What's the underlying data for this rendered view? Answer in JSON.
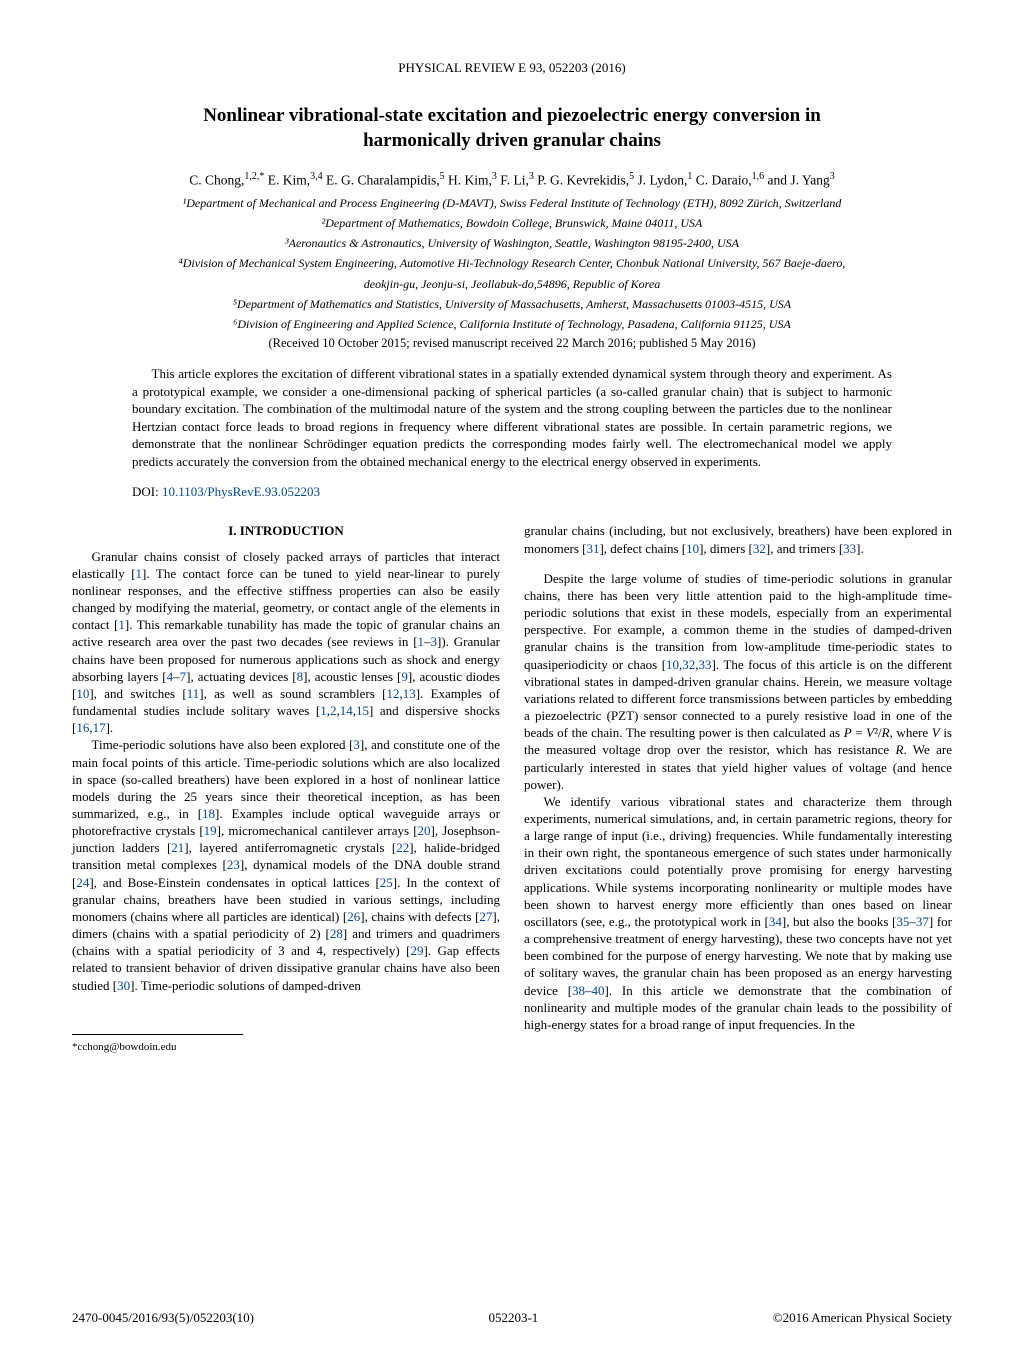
{
  "journal_header": "PHYSICAL REVIEW E 93, 052203 (2016)",
  "title_line1": "Nonlinear vibrational-state excitation and piezoelectric energy conversion in",
  "title_line2": "harmonically driven granular chains",
  "authors_html": "C. Chong,<span class='sup'>1,2,*</span> E. Kim,<span class='sup'>3,4</span> E. G. Charalampidis,<span class='sup'>5</span> H. Kim,<span class='sup'>3</span> F. Li,<span class='sup'>3</span> P. G. Kevrekidis,<span class='sup'>5</span> J. Lydon,<span class='sup'>1</span> C. Daraio,<span class='sup'>1,6</span> and J. Yang<span class='sup'>3</span>",
  "aff1": "¹Department of Mechanical and Process Engineering (D-MAVT), Swiss Federal Institute of Technology (ETH), 8092 Zürich, Switzerland",
  "aff2": "²Department of Mathematics, Bowdoin College, Brunswick, Maine 04011, USA",
  "aff3": "³Aeronautics & Astronautics, University of Washington, Seattle, Washington 98195-2400, USA",
  "aff4": "⁴Division of Mechanical System Engineering, Automotive Hi-Technology Research Center, Chonbuk National University, 567 Baeje-daero,",
  "aff4b": "deokjin-gu, Jeonju-si, Jeollabuk-do,54896, Republic of Korea",
  "aff5": "⁵Department of Mathematics and Statistics, University of Massachusetts, Amherst, Massachusetts 01003-4515, USA",
  "aff6": "⁶Division of Engineering and Applied Science, California Institute of Technology, Pasadena, California 91125, USA",
  "received": "(Received 10 October 2015; revised manuscript received 22 March 2016; published 5 May 2016)",
  "abstract": "This article explores the excitation of different vibrational states in a spatially extended dynamical system through theory and experiment. As a prototypical example, we consider a one-dimensional packing of spherical particles (a so-called granular chain) that is subject to harmonic boundary excitation. The combination of the multimodal nature of the system and the strong coupling between the particles due to the nonlinear Hertzian contact force leads to broad regions in frequency where different vibrational states are possible. In certain parametric regions, we demonstrate that the nonlinear Schrödinger equation predicts the corresponding modes fairly well. The electromechanical model we apply predicts accurately the conversion from the obtained mechanical energy to the electrical energy observed in experiments.",
  "doi_label": "DOI:",
  "doi_link": "10.1103/PhysRevE.93.052203",
  "section1": "I.  INTRODUCTION",
  "col1_p1": "Granular chains consist of closely packed arrays of particles that interact elastically [<span class='cite'>1</span>]. The contact force can be tuned to yield near-linear to purely nonlinear responses, and the effective stiffness properties can also be easily changed by modifying the material, geometry, or contact angle of the elements in contact [<span class='cite'>1</span>]. This remarkable tunability has made the topic of granular chains an active research area over the past two decades (see reviews in [<span class='cite'>1</span>–<span class='cite'>3</span>]). Granular chains have been proposed for numerous applications such as shock and energy absorbing layers [<span class='cite'>4</span>–<span class='cite'>7</span>], actuating devices [<span class='cite'>8</span>], acoustic lenses [<span class='cite'>9</span>], acoustic diodes [<span class='cite'>10</span>], and switches [<span class='cite'>11</span>], as well as sound scramblers [<span class='cite'>12</span>,<span class='cite'>13</span>]. Examples of fundamental studies include solitary waves [<span class='cite'>1</span>,<span class='cite'>2</span>,<span class='cite'>14</span>,<span class='cite'>15</span>] and dispersive shocks [<span class='cite'>16</span>,<span class='cite'>17</span>].",
  "col1_p2": "Time-periodic solutions have also been explored [<span class='cite'>3</span>], and constitute one of the main focal points of this article. Time-periodic solutions which are also localized in space (so-called breathers) have been explored in a host of nonlinear lattice models during the 25 years since their theoretical inception, as has been summarized, e.g., in [<span class='cite'>18</span>]. Examples include optical waveguide arrays or photorefractive crystals [<span class='cite'>19</span>], micromechanical cantilever arrays [<span class='cite'>20</span>], Josephson-junction ladders [<span class='cite'>21</span>], layered antiferromagnetic crystals [<span class='cite'>22</span>], halide-bridged transition metal complexes [<span class='cite'>23</span>], dynamical models of the DNA double strand [<span class='cite'>24</span>], and Bose-Einstein condensates in optical lattices [<span class='cite'>25</span>]. In the context of granular chains, breathers have been studied in various settings, including monomers (chains where all particles are identical) [<span class='cite'>26</span>], chains with defects [<span class='cite'>27</span>], dimers (chains with a spatial periodicity of 2) [<span class='cite'>28</span>] and trimers and quadrimers (chains with a spatial periodicity of 3 and 4, respectively) [<span class='cite'>29</span>]. Gap effects related to transient behavior of driven dissipative granular chains have also been studied [<span class='cite'>30</span>]. Time-periodic solutions of damped-driven",
  "col2_p1": "granular chains (including, but not exclusively, breathers) have been explored in monomers [<span class='cite'>31</span>], defect chains [<span class='cite'>10</span>], dimers [<span class='cite'>32</span>], and trimers [<span class='cite'>33</span>].",
  "col2_p2": "Despite the large volume of studies of time-periodic solutions in granular chains, there has been very little attention paid to the high-amplitude time-periodic solutions that exist in these models, especially from an experimental perspective. For example, a common theme in the studies of damped-driven granular chains is the transition from low-amplitude time-periodic states to quasiperiodicity or chaos [<span class='cite'>10</span>,<span class='cite'>32</span>,<span class='cite'>33</span>]. The focus of this article is on the different vibrational states in damped-driven granular chains. Herein, we measure voltage variations related to different force transmissions between particles by embedding a piezoelectric (PZT) sensor connected to a purely resistive load in one of the beads of the chain. The resulting power is then calculated as <i>P</i> = <i>V</i>²/<i>R</i>, where <i>V</i> is the measured voltage drop over the resistor, which has resistance <i>R</i>. We are particularly interested in states that yield higher values of voltage (and hence power).",
  "col2_p3": "We identify various vibrational states and characterize them through experiments, numerical simulations, and, in certain parametric regions, theory for a large range of input (i.e., driving) frequencies. While fundamentally interesting in their own right, the spontaneous emergence of such states under harmonically driven excitations could potentially prove promising for energy harvesting applications. While systems incorporating nonlinearity or multiple modes have been shown to harvest energy more efficiently than ones based on linear oscillators (see, e.g., the prototypical work in [<span class='cite'>34</span>], but also the books [<span class='cite'>35</span>–<span class='cite'>37</span>] for a comprehensive treatment of energy harvesting), these two concepts have not yet been combined for the purpose of energy harvesting. We note that by making use of solitary waves, the granular chain has been proposed as an energy harvesting device [<span class='cite'>38</span>–<span class='cite'>40</span>]. In this article we demonstrate that the combination of nonlinearity and multiple modes of the granular chain leads to the possibility of high-energy states for a broad range of input frequencies. In the",
  "footnote": "*cchong@bowdoin.edu",
  "footer_left": "2470-0045/2016/93(5)/052203(10)",
  "footer_center": "052203-1",
  "footer_right": "©2016 American Physical Society"
}
